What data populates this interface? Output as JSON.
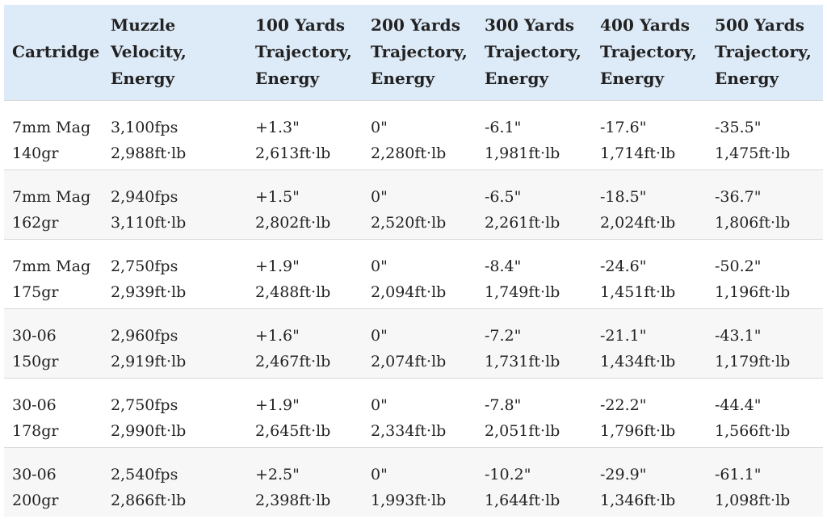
{
  "table": {
    "headers": [
      [
        "Cartridge"
      ],
      [
        "Muzzle",
        "Velocity,",
        "Energy"
      ],
      [
        "100 Yards",
        "Trajectory,",
        "Energy"
      ],
      [
        "200 Yards",
        "Trajectory,",
        "Energy"
      ],
      [
        "300 Yards",
        "Trajectory,",
        "Energy"
      ],
      [
        "400 Yards",
        "Trajectory,",
        "Energy"
      ],
      [
        "500 Yards",
        "Trajectory,",
        "Energy"
      ]
    ],
    "rows": [
      [
        [
          "7mm Mag",
          "140gr"
        ],
        [
          "3,100fps",
          "2,988ft·lb"
        ],
        [
          "+1.3\"",
          "2,613ft·lb"
        ],
        [
          "0\"",
          "2,280ft·lb"
        ],
        [
          "-6.1\"",
          "1,981ft·lb"
        ],
        [
          "-17.6\"",
          "1,714ft·lb"
        ],
        [
          "-35.5\"",
          "1,475ft·lb"
        ]
      ],
      [
        [
          "7mm Mag",
          "162gr"
        ],
        [
          "2,940fps",
          "3,110ft·lb"
        ],
        [
          "+1.5\"",
          "2,802ft·lb"
        ],
        [
          "0\"",
          "2,520ft·lb"
        ],
        [
          "-6.5\"",
          "2,261ft·lb"
        ],
        [
          "-18.5\"",
          "2,024ft·lb"
        ],
        [
          "-36.7\"",
          "1,806ft·lb"
        ]
      ],
      [
        [
          "7mm Mag",
          "175gr"
        ],
        [
          "2,750fps",
          "2,939ft·lb"
        ],
        [
          "+1.9\"",
          "2,488ft·lb"
        ],
        [
          "0\"",
          "2,094ft·lb"
        ],
        [
          "-8.4\"",
          "1,749ft·lb"
        ],
        [
          "-24.6\"",
          "1,451ft·lb"
        ],
        [
          "-50.2\"",
          "1,196ft·lb"
        ]
      ],
      [
        [
          "30-06",
          "150gr"
        ],
        [
          "2,960fps",
          "2,919ft·lb"
        ],
        [
          "+1.6\"",
          "2,467ft·lb"
        ],
        [
          "0\"",
          "2,074ft·lb"
        ],
        [
          "-7.2\"",
          "1,731ft·lb"
        ],
        [
          "-21.1\"",
          "1,434ft·lb"
        ],
        [
          "-43.1\"",
          "1,179ft·lb"
        ]
      ],
      [
        [
          "30-06",
          "178gr"
        ],
        [
          "2,750fps",
          "2,990ft·lb"
        ],
        [
          "+1.9\"",
          "2,645ft·lb"
        ],
        [
          "0\"",
          "2,334ft·lb"
        ],
        [
          "-7.8\"",
          "2,051ft·lb"
        ],
        [
          "-22.2\"",
          "1,796ft·lb"
        ],
        [
          "-44.4\"",
          "1,566ft·lb"
        ]
      ],
      [
        [
          "30-06",
          "200gr"
        ],
        [
          "2,540fps",
          "2,866ft·lb"
        ],
        [
          "+2.5\"",
          "2,398ft·lb"
        ],
        [
          "0\"",
          "1,993ft·lb"
        ],
        [
          "-10.2\"",
          "1,644ft·lb"
        ],
        [
          "-29.9\"",
          "1,346ft·lb"
        ],
        [
          "-61.1\"",
          "1,098ft·lb"
        ]
      ]
    ]
  },
  "colors": {
    "header_background": "#ddeaf7",
    "row_stripe": "#f7f7f7",
    "row_border": "#d9d9d9",
    "text": "#222222"
  }
}
